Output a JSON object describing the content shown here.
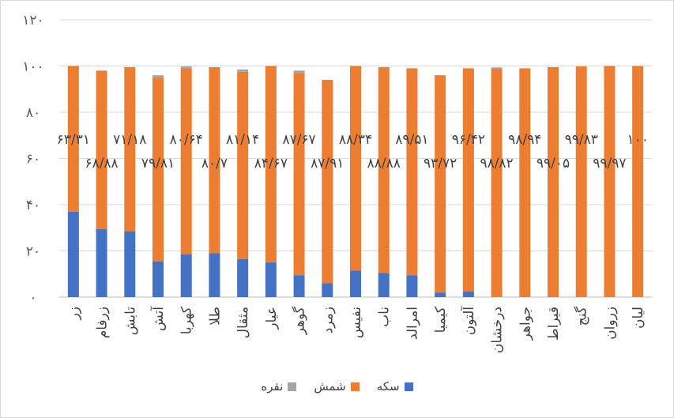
{
  "chart_data": {
    "type": "bar",
    "stacked": true,
    "title": "",
    "xlabel": "",
    "ylabel": "",
    "ylim": [
      0,
      120
    ],
    "yticks": [
      0,
      20,
      40,
      60,
      80,
      100,
      120
    ],
    "ytick_labels": [
      "۰",
      "۲۰",
      "۴۰",
      "۶۰",
      "۸۰",
      "۱۰۰",
      "۱۲۰"
    ],
    "grid": true,
    "categories": [
      "زر",
      "زرفام",
      "تابش",
      "آتش",
      "کهربا",
      "طلا",
      "مثقال",
      "عیار",
      "گوهر",
      "زمرد",
      "نفیس",
      "ناب",
      "امرالد",
      "کیمیا",
      "آلتون",
      "درخشان",
      "جواهر",
      "قیراط",
      "گنج",
      "زروان",
      "لیان"
    ],
    "series": [
      {
        "name": "سکه",
        "color": "#4472c4",
        "values": [
          37.0,
          29.5,
          28.5,
          15.5,
          18.5,
          19.0,
          16.5,
          15.0,
          9.5,
          6.0,
          11.5,
          10.5,
          9.5,
          2.0,
          2.5,
          0,
          0,
          0,
          0,
          0,
          0
        ]
      },
      {
        "name": "شمش",
        "color": "#ed7d31",
        "values": [
          63.0,
          68.5,
          71.0,
          79.5,
          80.5,
          80.5,
          81.0,
          85.0,
          87.5,
          88.0,
          88.5,
          89.0,
          89.5,
          94.0,
          96.5,
          98.8,
          99.0,
          99.5,
          99.8,
          100,
          100
        ]
      },
      {
        "name": "نقره",
        "color": "#a5a5a5",
        "values": [
          0,
          0,
          0,
          1.0,
          0.8,
          0,
          1.0,
          0,
          1.0,
          0,
          0,
          0,
          0,
          0,
          0,
          0.6,
          0,
          0,
          0,
          0,
          0
        ]
      }
    ],
    "data_labels": [
      "۶۳/۳۱",
      "۶۸/۸۸",
      "۷۱/۱۸",
      "۷۹/۸۱",
      "۸۰/۶۴",
      "۸۰/۷",
      "۸۱/۱۴",
      "۸۴/۶۷",
      "۸۷/۶۷",
      "۸۷/۹۱",
      "۸۸/۳۴",
      "۸۸/۸۸",
      "۸۹/۵۱",
      "۹۳/۷۲",
      "۹۶/۴۲",
      "۹۸/۸۲",
      "۹۸/۹۴",
      "۹۹/۰۵",
      "۹۹/۸۳",
      "۹۹/۹۷",
      "۱۰۰"
    ],
    "legend_position": "bottom"
  }
}
